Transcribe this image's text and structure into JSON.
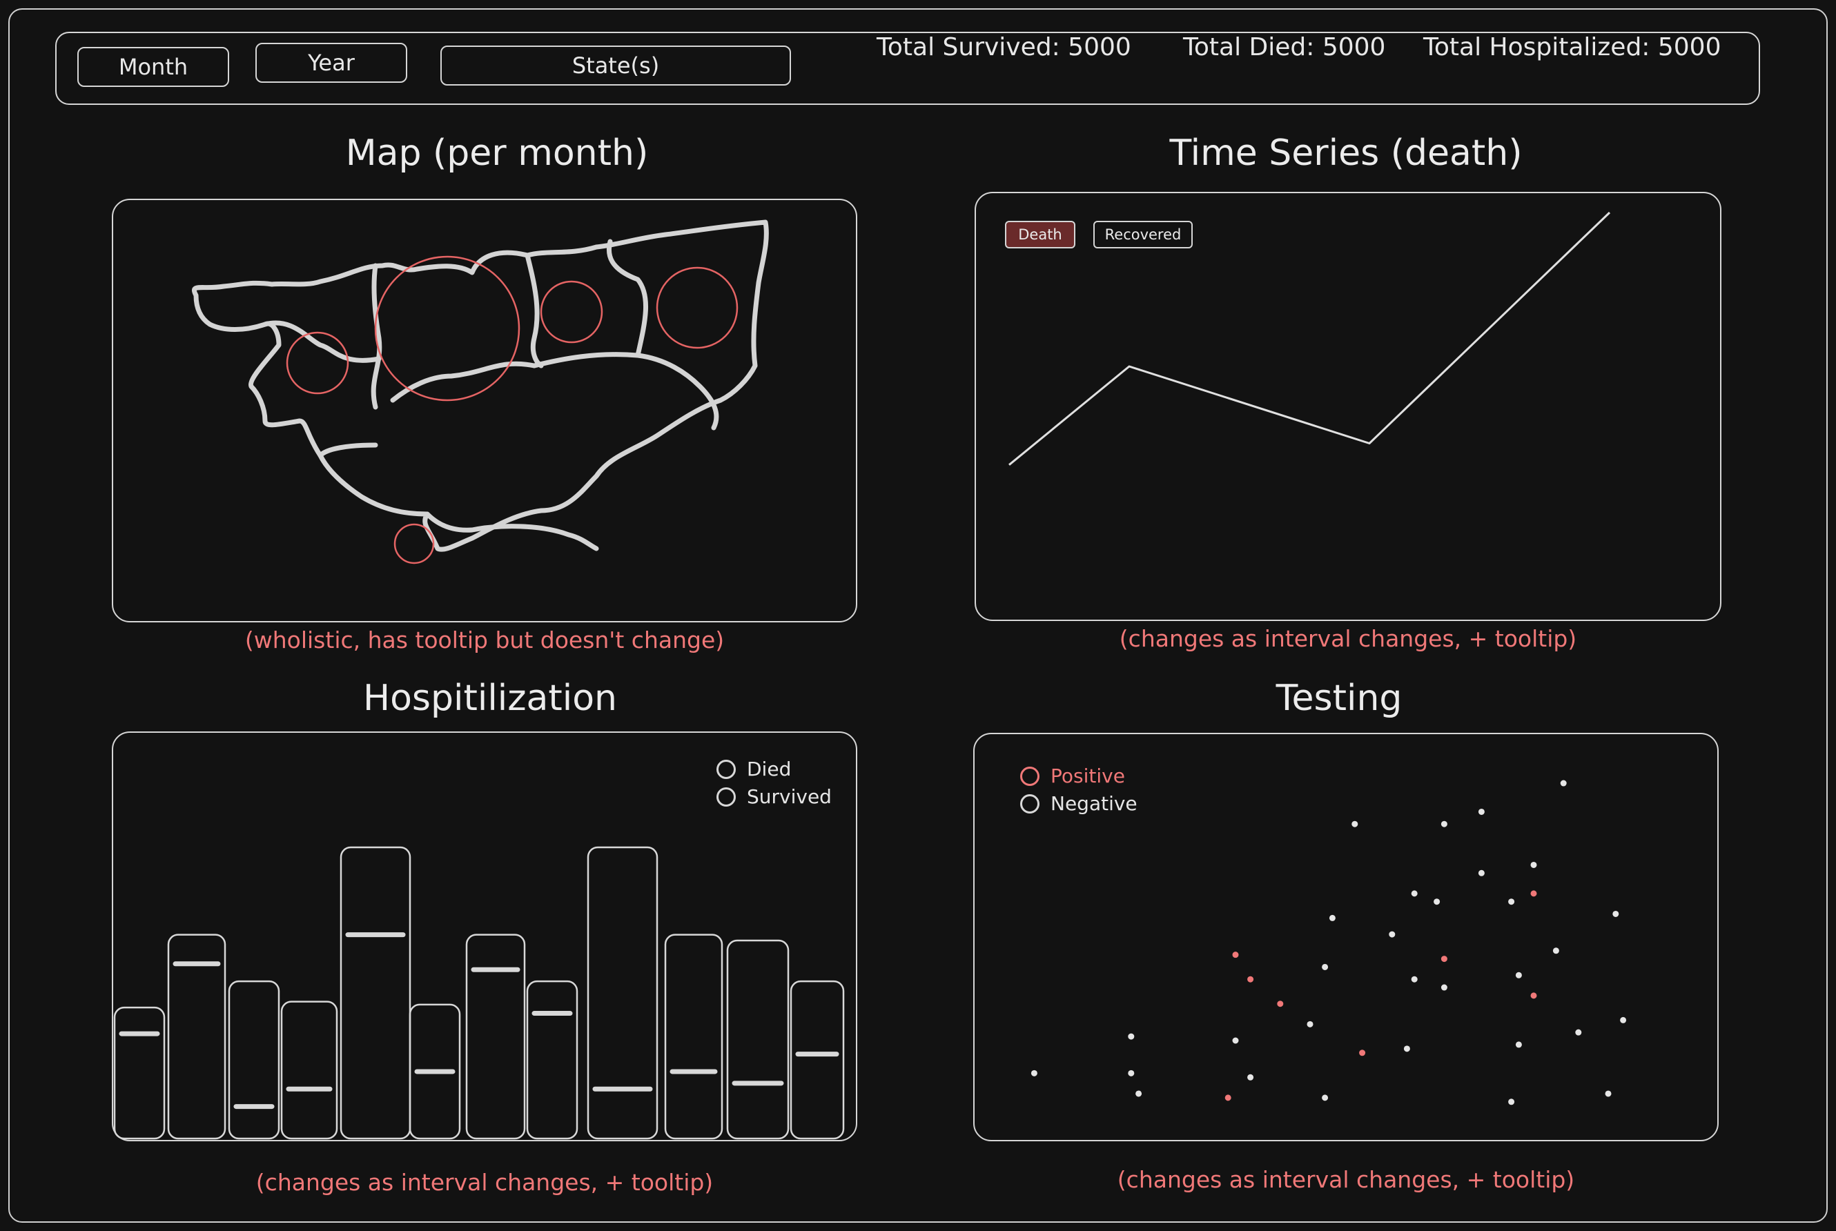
{
  "toolbar": {
    "month_label": "Month",
    "year_label": "Year",
    "states_label": "State(s)",
    "total_survived": "Total Survived: 5000",
    "total_died": "Total Died: 5000",
    "total_hospitalized": "Total Hospitalized: 5000"
  },
  "map_panel": {
    "title": "Map (per month)",
    "note": "(wholistic, has tooltip but doesn't change)",
    "bubble_color": "#e56464"
  },
  "timeseries_panel": {
    "title": "Time Series (death)",
    "note": "(changes as interval changes, + tooltip)",
    "buttons": {
      "death": "Death",
      "recovered": "Recovered"
    },
    "active_color": "#6a2a2a"
  },
  "hospital_panel": {
    "title": "Hospitilization",
    "note": "(changes as interval changes, + tooltip)",
    "legend": {
      "died": "Died",
      "survived": "Survived"
    }
  },
  "testing_panel": {
    "title": "Testing",
    "note": "(changes as interval changes, + tooltip)",
    "legend": {
      "positive": "Positive",
      "negative": "Negative"
    },
    "positive_color": "#f07878"
  },
  "chart_data": [
    {
      "type": "line",
      "x": [
        0,
        1,
        2,
        3
      ],
      "values": [
        0.18,
        0.5,
        0.25,
        1.0
      ],
      "ylim": [
        0,
        1
      ]
    },
    {
      "type": "bar",
      "values": [
        0.45,
        0.7,
        0.54,
        0.47,
        1.0,
        0.46,
        0.7,
        0.54,
        1.0,
        0.7,
        0.68,
        0.54
      ],
      "markers": [
        0.36,
        0.6,
        0.11,
        0.17,
        0.7,
        0.23,
        0.58,
        0.43,
        0.17,
        0.23,
        0.19,
        0.29
      ],
      "ylim": [
        0,
        1
      ]
    },
    {
      "type": "scatter",
      "series": [
        {
          "name": "Negative",
          "points": [
            [
              0.08,
              0.17
            ],
            [
              0.21,
              0.26
            ],
            [
              0.21,
              0.17
            ],
            [
              0.22,
              0.12
            ],
            [
              0.35,
              0.25
            ],
            [
              0.37,
              0.16
            ],
            [
              0.45,
              0.29
            ],
            [
              0.47,
              0.11
            ],
            [
              0.47,
              0.43
            ],
            [
              0.48,
              0.55
            ],
            [
              0.51,
              0.78
            ],
            [
              0.56,
              0.51
            ],
            [
              0.58,
              0.23
            ],
            [
              0.59,
              0.4
            ],
            [
              0.59,
              0.61
            ],
            [
              0.62,
              0.59
            ],
            [
              0.63,
              0.38
            ],
            [
              0.63,
              0.78
            ],
            [
              0.68,
              0.66
            ],
            [
              0.68,
              0.81
            ],
            [
              0.72,
              0.59
            ],
            [
              0.72,
              0.1
            ],
            [
              0.73,
              0.24
            ],
            [
              0.73,
              0.41
            ],
            [
              0.75,
              0.68
            ],
            [
              0.78,
              0.47
            ],
            [
              0.79,
              0.88
            ],
            [
              0.81,
              0.27
            ],
            [
              0.85,
              0.12
            ],
            [
              0.86,
              0.56
            ],
            [
              0.87,
              0.3
            ]
          ]
        },
        {
          "name": "Positive",
          "points": [
            [
              0.35,
              0.46
            ],
            [
              0.37,
              0.4
            ],
            [
              0.41,
              0.34
            ],
            [
              0.52,
              0.22
            ],
            [
              0.63,
              0.45
            ],
            [
              0.75,
              0.61
            ],
            [
              0.75,
              0.36
            ],
            [
              0.34,
              0.11
            ]
          ]
        }
      ],
      "xlim": [
        0,
        1
      ],
      "ylim": [
        0,
        1
      ]
    }
  ]
}
